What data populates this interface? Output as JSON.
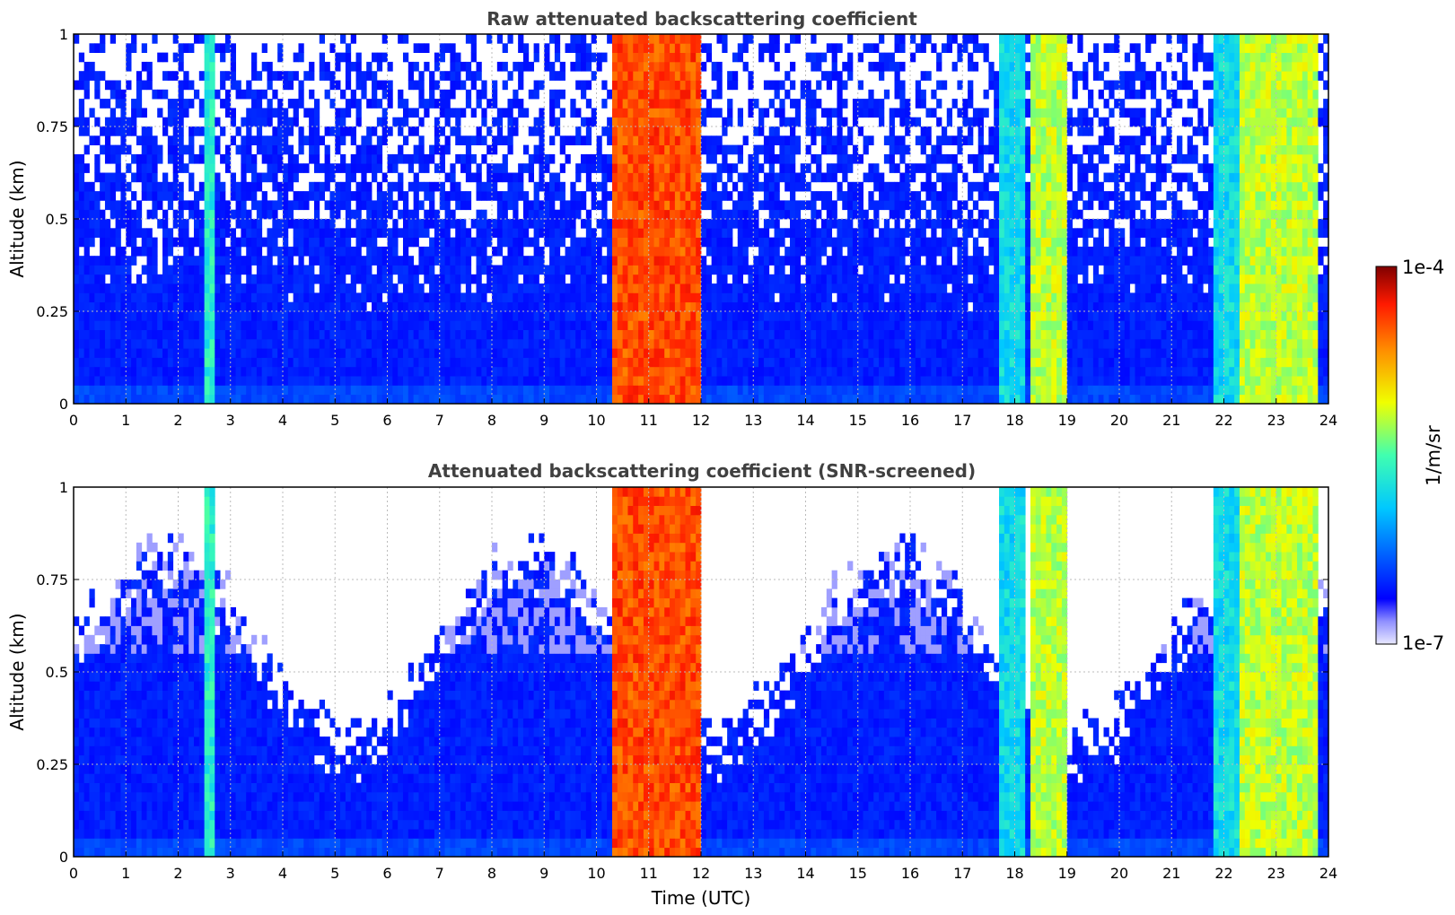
{
  "chart_data": [
    {
      "type": "heatmap",
      "title": "Raw attenuated backscattering coefficient",
      "xlabel": "",
      "ylabel": "Altitude (km)",
      "xlim": [
        0,
        24
      ],
      "ylim": [
        0,
        1
      ],
      "x_ticks": [
        "0",
        "1",
        "2",
        "3",
        "4",
        "5",
        "6",
        "7",
        "8",
        "9",
        "10",
        "11",
        "12",
        "13",
        "14",
        "15",
        "16",
        "17",
        "18",
        "19",
        "20",
        "21",
        "22",
        "23",
        "24"
      ],
      "y_ticks": [
        "0",
        "0.25",
        "0.5",
        "0.75",
        "1"
      ],
      "grid": true,
      "screened": false,
      "features": [
        {
          "name": "column",
          "x0": 2.55,
          "x1": 2.72,
          "level": 0.45
        },
        {
          "name": "thick-cloud",
          "x0": 10.3,
          "x1": 11.95,
          "level": 0.85
        },
        {
          "name": "column",
          "x0": 17.75,
          "x1": 18.2,
          "level": 0.4
        },
        {
          "name": "thick-cloud",
          "x0": 18.3,
          "x1": 18.95,
          "level": 0.6
        },
        {
          "name": "column",
          "x0": 21.85,
          "x1": 22.3,
          "level": 0.4
        },
        {
          "name": "thick-cloud",
          "x0": 22.35,
          "x1": 23.8,
          "level": 0.6
        }
      ]
    },
    {
      "type": "heatmap",
      "title": "Attenuated backscattering coefficient (SNR-screened)",
      "xlabel": "Time (UTC)",
      "ylabel": "Altitude (km)",
      "xlim": [
        0,
        24
      ],
      "ylim": [
        0,
        1
      ],
      "x_ticks": [
        "0",
        "1",
        "2",
        "3",
        "4",
        "5",
        "6",
        "7",
        "8",
        "9",
        "10",
        "11",
        "12",
        "13",
        "14",
        "15",
        "16",
        "17",
        "18",
        "19",
        "20",
        "21",
        "22",
        "23",
        "24"
      ],
      "y_ticks": [
        "0",
        "0.25",
        "0.5",
        "0.75",
        "1"
      ],
      "grid": true,
      "screened": true,
      "features": [
        {
          "name": "column",
          "x0": 2.55,
          "x1": 2.72,
          "level": 0.45
        },
        {
          "name": "thick-cloud",
          "x0": 10.3,
          "x1": 11.95,
          "level": 0.85
        },
        {
          "name": "column",
          "x0": 17.75,
          "x1": 18.2,
          "level": 0.4
        },
        {
          "name": "thick-cloud",
          "x0": 18.3,
          "x1": 18.95,
          "level": 0.6
        },
        {
          "name": "column",
          "x0": 21.85,
          "x1": 22.3,
          "level": 0.4
        },
        {
          "name": "thick-cloud",
          "x0": 22.35,
          "x1": 23.8,
          "level": 0.6
        }
      ]
    }
  ],
  "colorbar": {
    "label": "1/m/sr",
    "max_label": "1e-4",
    "min_label": "1e-7",
    "scale": "log",
    "colormap": "jet"
  }
}
